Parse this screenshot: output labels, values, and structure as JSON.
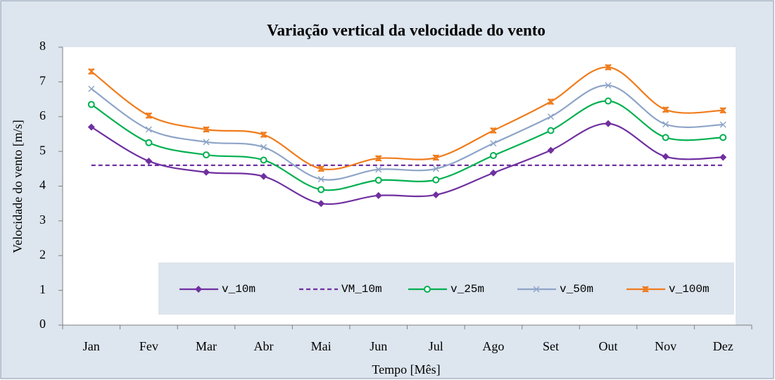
{
  "chart_data": {
    "type": "line",
    "title": "Variação vertical da velocidade do vento",
    "xlabel": "Tempo [Mês]",
    "ylabel": "Velocidade do vento [m/s]",
    "categories": [
      "Jan",
      "Fev",
      "Mar",
      "Abr",
      "Mai",
      "Jun",
      "Jul",
      "Ago",
      "Set",
      "Out",
      "Nov",
      "Dez"
    ],
    "ylim": [
      0,
      8
    ],
    "yticks": [
      0,
      1,
      2,
      3,
      4,
      5,
      6,
      7,
      8
    ],
    "grid": false,
    "smooth": true,
    "legend": "bottom",
    "series": [
      {
        "name": "v_10m",
        "color": "#7030a0",
        "marker": "diamond",
        "line_style": "solid",
        "values": [
          5.7,
          4.72,
          4.4,
          4.28,
          3.5,
          3.73,
          3.75,
          4.38,
          5.03,
          5.8,
          4.85,
          4.83
        ]
      },
      {
        "name": "VM_10m",
        "color": "#7030a0",
        "marker": "none",
        "line_style": "dashed",
        "values": [
          4.6,
          4.6,
          4.6,
          4.6,
          4.6,
          4.6,
          4.6,
          4.6,
          4.6,
          4.6,
          4.6,
          4.6
        ]
      },
      {
        "name": "v_25m",
        "color": "#00b050",
        "marker": "circle",
        "line_style": "solid",
        "values": [
          6.35,
          5.25,
          4.9,
          4.75,
          3.9,
          4.17,
          4.18,
          4.88,
          5.6,
          6.45,
          5.4,
          5.4
        ]
      },
      {
        "name": "v_50m",
        "color": "#8ea5c8",
        "marker": "x",
        "line_style": "solid",
        "values": [
          6.8,
          5.63,
          5.27,
          5.12,
          4.2,
          4.48,
          4.5,
          5.23,
          6.0,
          6.9,
          5.78,
          5.77
        ]
      },
      {
        "name": "v_100m",
        "color": "#f07c1c",
        "marker": "star",
        "line_style": "solid",
        "values": [
          7.3,
          6.03,
          5.63,
          5.48,
          4.5,
          4.8,
          4.82,
          5.6,
          6.43,
          7.42,
          6.2,
          6.18
        ]
      }
    ]
  }
}
